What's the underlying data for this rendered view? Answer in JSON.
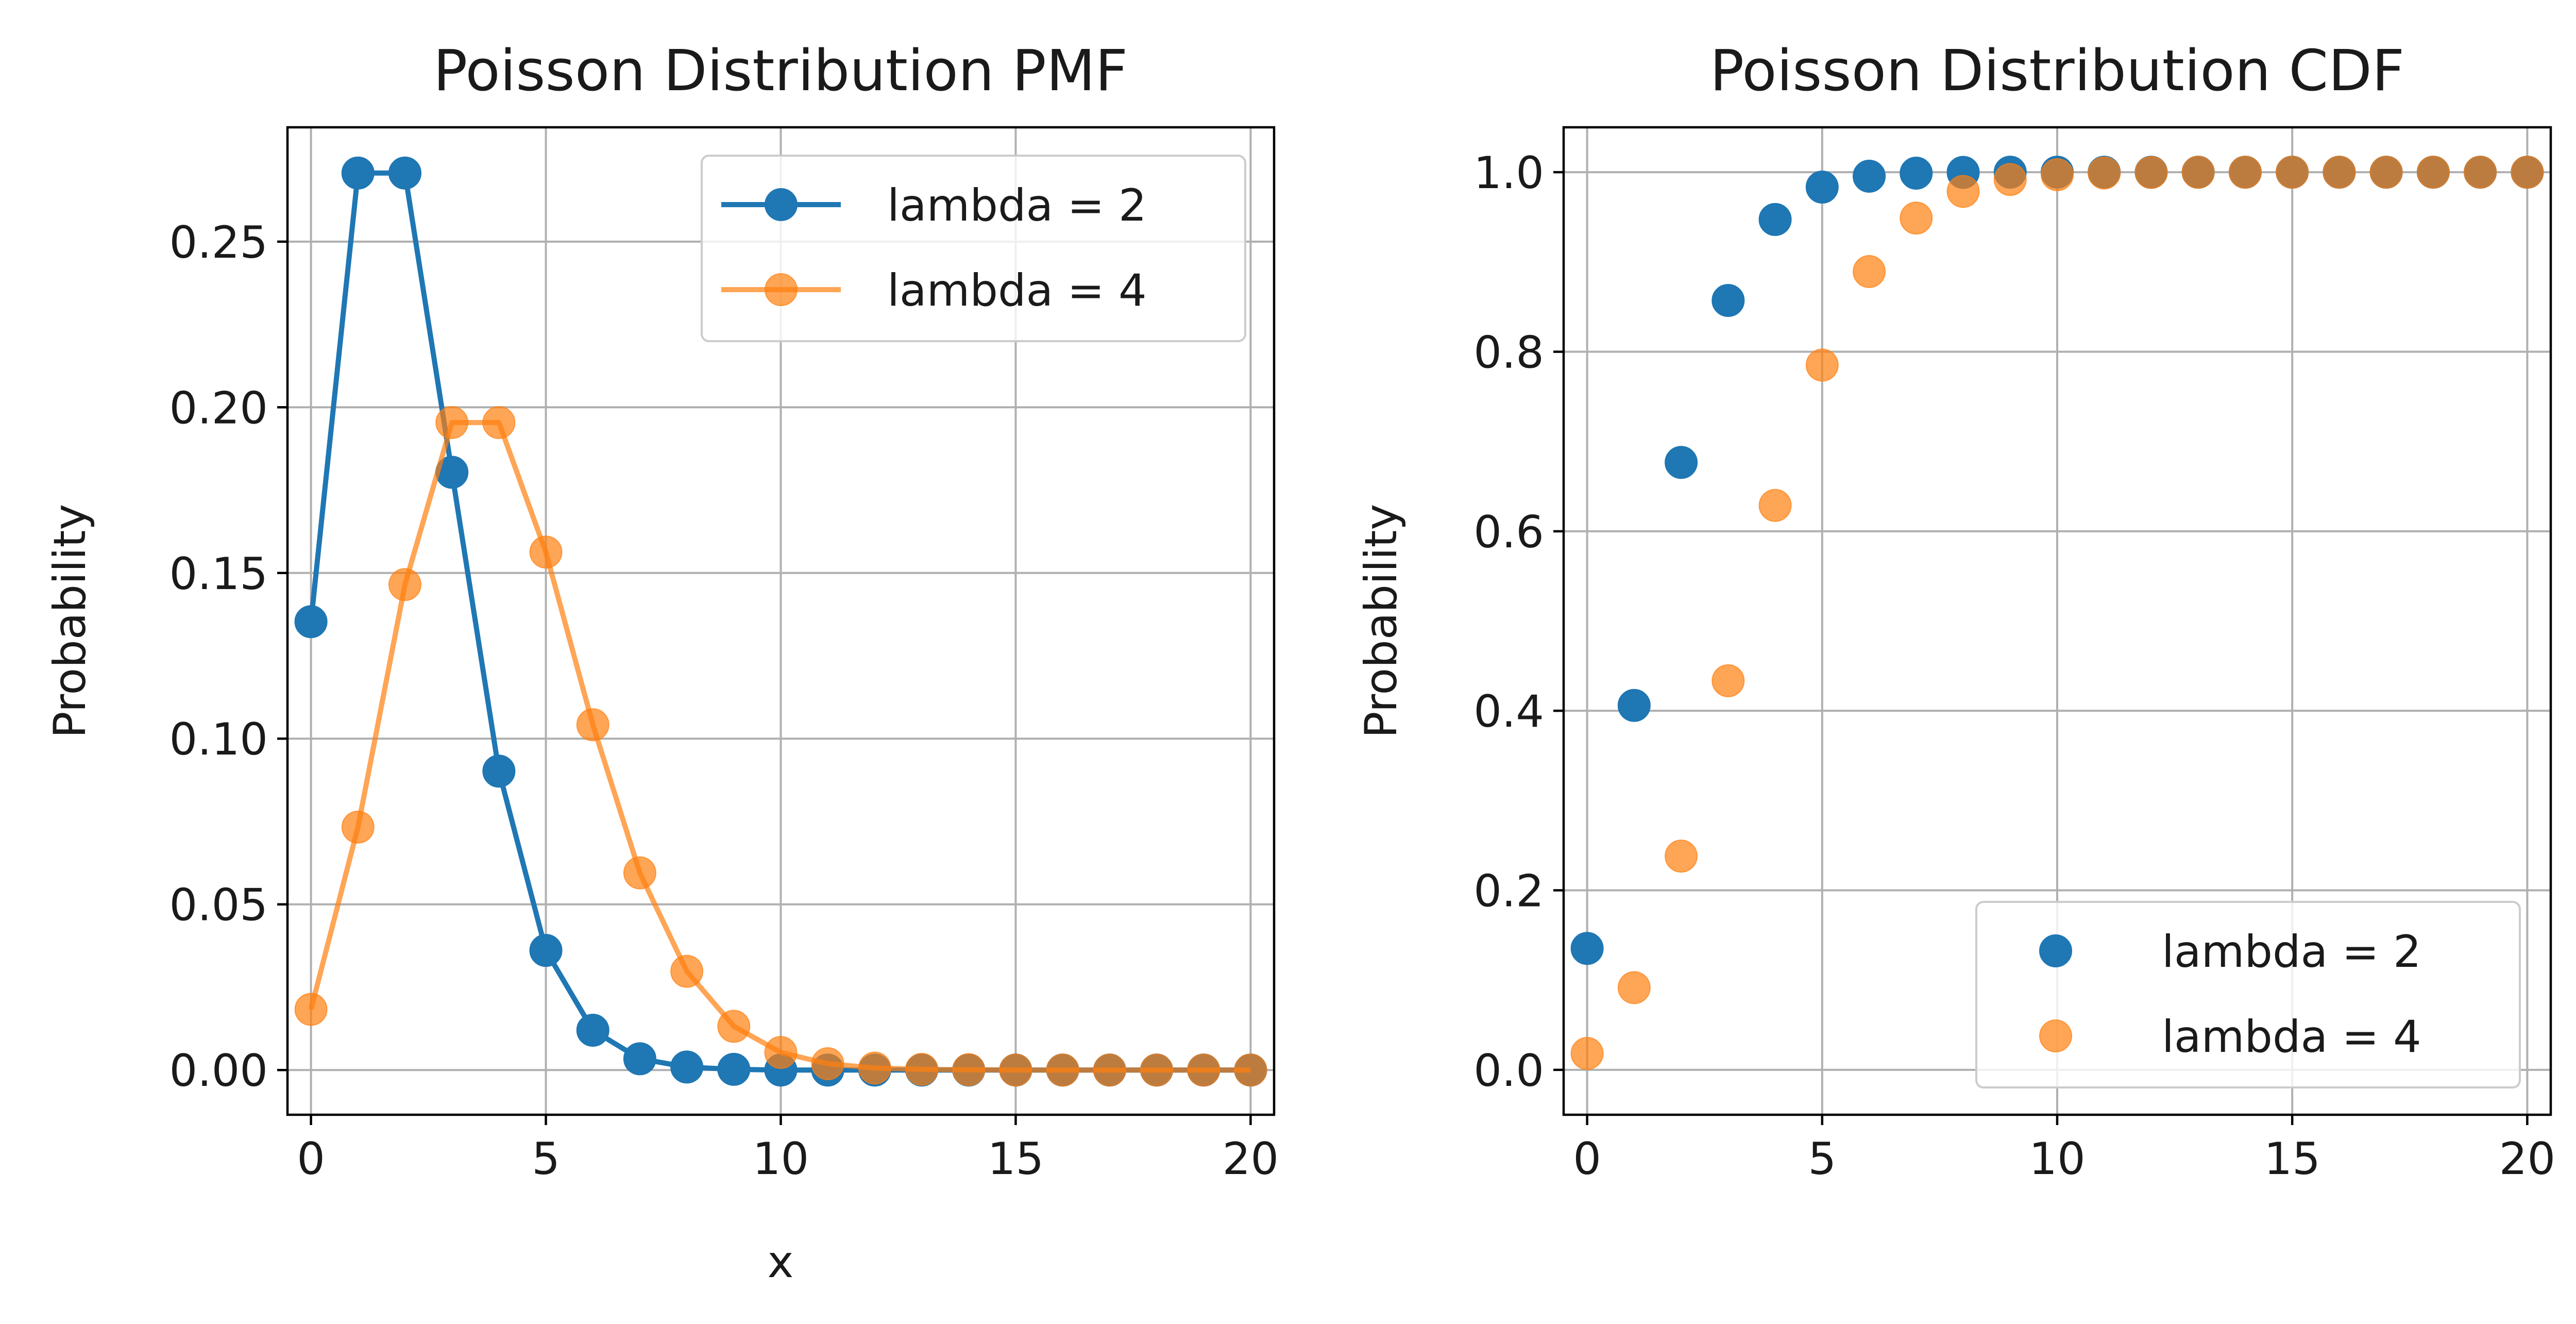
{
  "chart_data": [
    {
      "type": "line",
      "title": "Poisson Distribution PMF",
      "xlabel": "x",
      "ylabel": "Probability",
      "xlim": [
        -0.5,
        20.5
      ],
      "ylim": [
        -0.0135,
        0.2845
      ],
      "xticks": [
        0,
        5,
        10,
        15,
        20
      ],
      "yticks": [
        "0.00",
        "0.05",
        "0.10",
        "0.15",
        "0.20",
        "0.25"
      ],
      "grid": true,
      "legend_position": "upper right",
      "markers": true,
      "lines": true,
      "x": [
        0,
        1,
        2,
        3,
        4,
        5,
        6,
        7,
        8,
        9,
        10,
        11,
        12,
        13,
        14,
        15,
        16,
        17,
        18,
        19,
        20
      ],
      "series": [
        {
          "name": "lambda = 2",
          "color": "#1f77b4",
          "alpha": 1.0,
          "values": [
            0.1353,
            0.2707,
            0.2707,
            0.1804,
            0.0902,
            0.0361,
            0.012,
            0.0034,
            0.0009,
            0.0002,
            0.0,
            0.0,
            0.0,
            0.0,
            0.0,
            0.0,
            0.0,
            0.0,
            0.0,
            0.0,
            0.0
          ]
        },
        {
          "name": "lambda = 4",
          "color": "#ff7f0e",
          "alpha": 0.7,
          "values": [
            0.0183,
            0.0733,
            0.1465,
            0.1954,
            0.1954,
            0.1563,
            0.1042,
            0.0595,
            0.0298,
            0.0132,
            0.0053,
            0.0019,
            0.0006,
            0.0002,
            0.0001,
            0.0,
            0.0,
            0.0,
            0.0,
            0.0,
            0.0
          ]
        }
      ]
    },
    {
      "type": "scatter",
      "title": "Poisson Distribution CDF",
      "xlabel": "",
      "ylabel": "Probability",
      "xlim": [
        -0.5,
        20.5
      ],
      "ylim": [
        -0.05,
        1.05
      ],
      "xticks": [
        0,
        5,
        10,
        15,
        20
      ],
      "yticks": [
        "0.0",
        "0.2",
        "0.4",
        "0.6",
        "0.8",
        "1.0"
      ],
      "grid": true,
      "legend_position": "lower right",
      "markers": true,
      "lines": false,
      "x": [
        0,
        1,
        2,
        3,
        4,
        5,
        6,
        7,
        8,
        9,
        10,
        11,
        12,
        13,
        14,
        15,
        16,
        17,
        18,
        19,
        20
      ],
      "series": [
        {
          "name": "lambda = 2",
          "color": "#1f77b4",
          "alpha": 1.0,
          "values": [
            0.1353,
            0.406,
            0.6767,
            0.8571,
            0.9473,
            0.9834,
            0.9955,
            0.9989,
            0.9998,
            1.0,
            1.0,
            1.0,
            1.0,
            1.0,
            1.0,
            1.0,
            1.0,
            1.0,
            1.0,
            1.0,
            1.0
          ]
        },
        {
          "name": "lambda = 4",
          "color": "#ff7f0e",
          "alpha": 0.7,
          "values": [
            0.0183,
            0.0916,
            0.2381,
            0.4335,
            0.6288,
            0.7851,
            0.8893,
            0.9489,
            0.9786,
            0.9919,
            0.9972,
            0.9991,
            0.9997,
            0.9999,
            1.0,
            1.0,
            1.0,
            1.0,
            1.0,
            1.0,
            1.0
          ]
        }
      ]
    }
  ]
}
